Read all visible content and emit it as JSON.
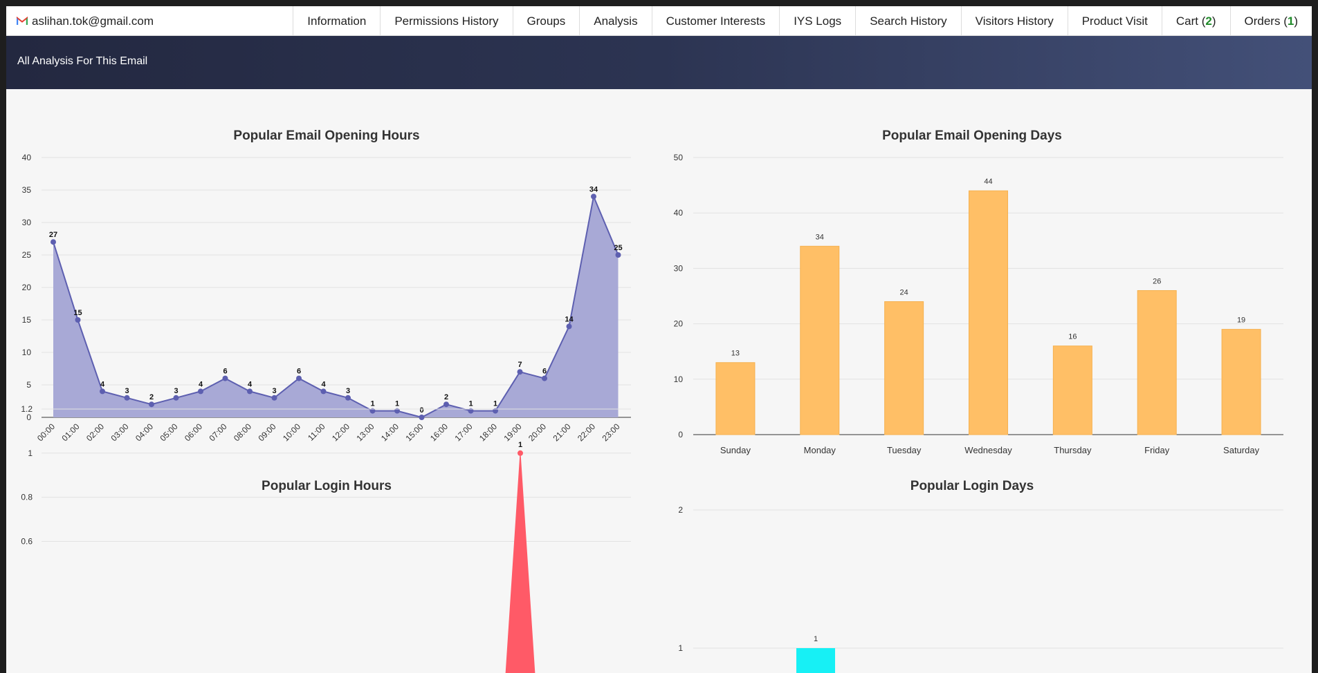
{
  "header": {
    "email": "aslihan.tok@gmail.com",
    "tabs": [
      {
        "label": "Information"
      },
      {
        "label": "Permissions History"
      },
      {
        "label": "Groups"
      },
      {
        "label": "Analysis"
      },
      {
        "label": "Customer Interests"
      },
      {
        "label": "IYS Logs"
      },
      {
        "label": "Search History"
      },
      {
        "label": "Visitors History"
      },
      {
        "label": "Product Visit"
      },
      {
        "label": "Cart",
        "count": "2"
      },
      {
        "label": "Orders",
        "count": "1"
      }
    ]
  },
  "banner": {
    "title": "All Analysis For This Email"
  },
  "colors": {
    "area_fill": "#a8a9d6",
    "area_line": "#5d5fb0",
    "bar_orange": "#ffbf66",
    "login_peak": "#ff5a67",
    "login_bar": "#17f0f5",
    "grid": "#e2e2e2"
  },
  "chart_data": [
    {
      "type": "area",
      "title": "Popular Email Opening Hours",
      "categories": [
        "00:00",
        "01:00",
        "02:00",
        "03:00",
        "04:00",
        "05:00",
        "06:00",
        "07:00",
        "08:00",
        "09:00",
        "10:00",
        "11:00",
        "12:00",
        "13:00",
        "14:00",
        "15:00",
        "16:00",
        "17:00",
        "18:00",
        "19:00",
        "20:00",
        "21:00",
        "22:00",
        "23:00"
      ],
      "values": [
        27,
        15,
        4,
        3,
        2,
        3,
        4,
        6,
        4,
        3,
        6,
        4,
        3,
        1,
        1,
        0,
        2,
        1,
        1,
        7,
        6,
        14,
        34,
        25
      ],
      "yticks": [
        0,
        5,
        10,
        15,
        20,
        25,
        30,
        35,
        40
      ],
      "ylim": [
        0,
        40
      ],
      "grid": true
    },
    {
      "type": "bar",
      "title": "Popular Email Opening Days",
      "categories": [
        "Sunday",
        "Monday",
        "Tuesday",
        "Wednesday",
        "Thursday",
        "Friday",
        "Saturday"
      ],
      "values": [
        13,
        34,
        24,
        44,
        16,
        26,
        19
      ],
      "yticks": [
        0,
        10,
        20,
        30,
        40,
        50
      ],
      "ylim": [
        0,
        50
      ],
      "grid": true
    },
    {
      "type": "area",
      "title": "Popular Login Hours",
      "peak_label": "1",
      "peak_value": 1,
      "yticks": [
        "0.6",
        "0.8",
        "1",
        "1.2"
      ],
      "ylim": [
        0,
        1.2
      ],
      "grid": true
    },
    {
      "type": "bar",
      "title": "Popular Login Days",
      "bar_label": "1",
      "bar_value": 1,
      "yticks": [
        "1",
        "2"
      ],
      "ylim": [
        0,
        2
      ],
      "grid": true
    }
  ]
}
